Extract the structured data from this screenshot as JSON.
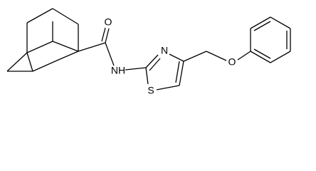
{
  "atoms": [
    {
      "label": "O"
    },
    {
      "label": "NH"
    },
    {
      "label": "N"
    },
    {
      "label": "S"
    },
    {
      "label": "O"
    }
  ]
}
